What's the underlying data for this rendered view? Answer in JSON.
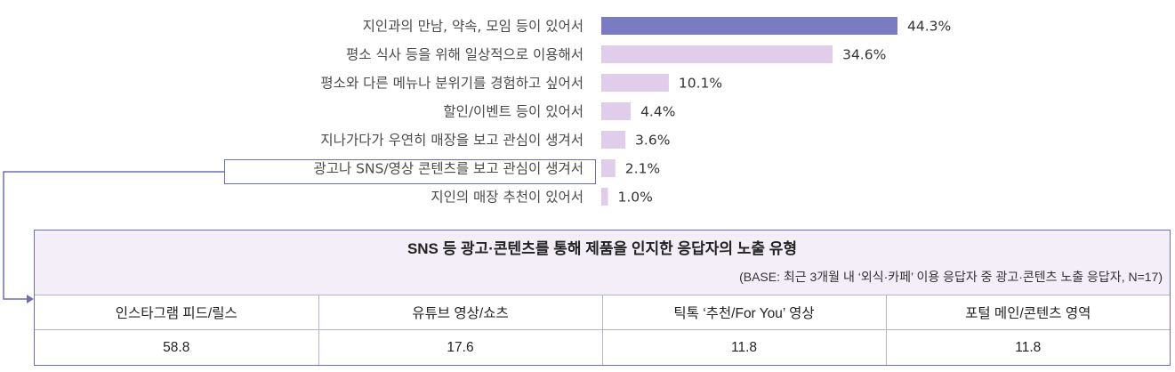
{
  "chart_data": {
    "type": "bar",
    "orientation": "horizontal",
    "categories": [
      "지인과의 만남, 약속, 모임 등이 있어서",
      "평소 식사 등을 위해 일상적으로 이용해서",
      "평소와 다른 메뉴나 분위기를 경험하고 싶어서",
      "할인/이벤트 등이 있어서",
      "지나가다가 우연히 매장을 보고 관심이 생겨서",
      "광고나 SNS/영상 콘텐츠를 보고 관심이 생겨서",
      "지인의 매장 추천이 있어서"
    ],
    "values": [
      44.3,
      34.6,
      10.1,
      4.4,
      3.6,
      2.1,
      1.0
    ],
    "value_labels": [
      "44.3%",
      "34.6%",
      "10.1%",
      "4.4%",
      "3.6%",
      "2.1%",
      "1.0%"
    ],
    "unit": "%",
    "xlim": [
      0,
      44.3
    ],
    "highlight_index": 0,
    "colors": {
      "highlight": "#7b7bc4",
      "default": "#e0cde9"
    },
    "callout_index": 5
  },
  "callout": {
    "title": "SNS 등 광고·콘텐츠를 통해 제품을 인지한 응답자의 노출 유형",
    "base": "(BASE: 최근 3개월 내 ‘외식·카페’ 이용 응답자 중 광고·콘텐츠 노출 응답자, N=17)",
    "columns": [
      "인스타그램 피드/릴스",
      "유튜브 영상/쇼츠",
      "틱톡 ‘추천/For You’ 영상",
      "포털 메인/콘텐츠 영역"
    ],
    "values": [
      "58.8",
      "17.6",
      "11.8",
      "11.8"
    ],
    "frame_color": "#6d6fb3",
    "header_bg": "#f4eef8"
  }
}
